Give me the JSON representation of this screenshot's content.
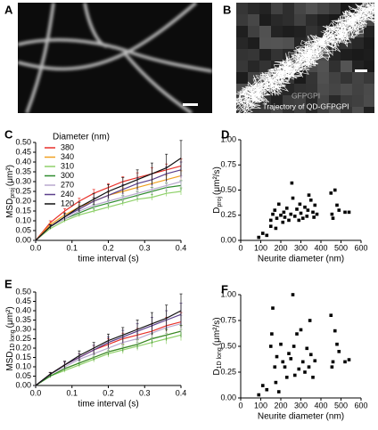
{
  "images": [
    {
      "label": "A"
    },
    {
      "label": "B",
      "caption": [
        "GFPGPI",
        "Trajectory of QD-GFPGPI"
      ]
    }
  ],
  "chart_data": [
    {
      "type": "line",
      "label": "C",
      "legend": true,
      "legend_title": "Diameter (nm)",
      "x_label": "time interval (s)",
      "y_label": {
        "main": "MSD",
        "sub": "proj",
        "unit": "(μm²)"
      },
      "xlim": [
        0,
        0.4
      ],
      "xticks": [
        {
          "value": 0,
          "label": "0.0"
        },
        0.1,
        0.2,
        0.3,
        0.4
      ],
      "ylim": [
        0,
        0.5
      ],
      "yticks": [
        {
          "value": 0,
          "label": "0.00"
        },
        0.05,
        {
          "value": 0.1,
          "label": "0.10"
        },
        0.15,
        {
          "value": 0.2,
          "label": "0.20"
        },
        0.25,
        {
          "value": 0.3,
          "label": "0.30"
        },
        0.35,
        {
          "value": 0.4,
          "label": "0.40"
        },
        0.45,
        {
          "value": 0.5,
          "label": "0.50"
        }
      ],
      "x": [
        0,
        0.04,
        0.08,
        0.12,
        0.16,
        0.2,
        0.24,
        0.28,
        0.32,
        0.36,
        0.4
      ],
      "series": [
        {
          "name": "380",
          "color": "#e8312a",
          "values": [
            0,
            0.09,
            0.15,
            0.2,
            0.24,
            0.27,
            0.3,
            0.32,
            0.34,
            0.36,
            0.38
          ],
          "errors": [
            0,
            0.01,
            0.012,
            0.015,
            0.02,
            0.02,
            0.025,
            0.025,
            0.03,
            0.03,
            0.035
          ]
        },
        {
          "name": "340",
          "color": "#f0a020",
          "values": [
            0,
            0.08,
            0.13,
            0.17,
            0.2,
            0.23,
            0.25,
            0.27,
            0.29,
            0.31,
            0.33
          ],
          "errors": [
            0,
            0.008,
            0.01,
            0.012,
            0.015,
            0.015,
            0.018,
            0.02,
            0.02,
            0.022,
            0.025
          ]
        },
        {
          "name": "310",
          "color": "#8fd16a",
          "values": [
            0,
            0.06,
            0.1,
            0.13,
            0.15,
            0.17,
            0.19,
            0.21,
            0.22,
            0.24,
            0.25
          ],
          "errors": [
            0,
            0.006,
            0.008,
            0.01,
            0.01,
            0.012,
            0.012,
            0.014,
            0.015,
            0.015,
            0.018
          ]
        },
        {
          "name": "300",
          "color": "#2e8b2e",
          "values": [
            0,
            0.07,
            0.11,
            0.14,
            0.17,
            0.19,
            0.21,
            0.23,
            0.25,
            0.27,
            0.28
          ],
          "errors": [
            0,
            0.008,
            0.01,
            0.012,
            0.014,
            0.015,
            0.018,
            0.02,
            0.02,
            0.022,
            0.025
          ]
        },
        {
          "name": "270",
          "color": "#b9a9cf",
          "values": [
            0,
            0.07,
            0.11,
            0.15,
            0.18,
            0.2,
            0.22,
            0.24,
            0.26,
            0.28,
            0.3
          ],
          "errors": [
            0,
            0.008,
            0.01,
            0.012,
            0.015,
            0.018,
            0.02,
            0.022,
            0.025,
            0.028,
            0.03
          ]
        },
        {
          "name": "240",
          "color": "#5b3f8c",
          "values": [
            0,
            0.07,
            0.12,
            0.16,
            0.2,
            0.23,
            0.26,
            0.29,
            0.31,
            0.34,
            0.36
          ],
          "errors": [
            0,
            0.01,
            0.012,
            0.015,
            0.018,
            0.02,
            0.025,
            0.028,
            0.03,
            0.035,
            0.04
          ]
        },
        {
          "name": "120",
          "color": "#111111",
          "values": [
            0,
            0.07,
            0.12,
            0.17,
            0.21,
            0.25,
            0.28,
            0.31,
            0.34,
            0.37,
            0.42
          ],
          "errors": [
            0,
            0.01,
            0.02,
            0.025,
            0.03,
            0.035,
            0.04,
            0.05,
            0.055,
            0.07,
            0.09
          ]
        }
      ]
    },
    {
      "type": "scatter",
      "label": "D",
      "color": "#000000",
      "x_label": "Neurite diameter (nm)",
      "y_label": {
        "main": "D",
        "sub": "proj",
        "unit": "(μm²/s)"
      },
      "xlim": [
        0,
        600
      ],
      "xticks": [
        0,
        100,
        200,
        300,
        400,
        500,
        600
      ],
      "ylim": [
        0,
        1
      ],
      "yticks": [
        {
          "value": 0,
          "label": "0.00"
        },
        0.25,
        {
          "value": 0.5,
          "label": "0.50"
        },
        0.75,
        {
          "value": 1,
          "label": "1.00"
        }
      ],
      "x": [
        90,
        110,
        130,
        150,
        150,
        160,
        170,
        175,
        180,
        190,
        200,
        210,
        215,
        220,
        230,
        240,
        250,
        255,
        260,
        270,
        280,
        290,
        295,
        300,
        310,
        320,
        330,
        335,
        340,
        350,
        360,
        365,
        370,
        380,
        450,
        455,
        460,
        470,
        480,
        490,
        520,
        540
      ],
      "values": [
        0.03,
        0.07,
        0.05,
        0.14,
        0.2,
        0.26,
        0.3,
        0.12,
        0.22,
        0.36,
        0.25,
        0.18,
        0.28,
        0.23,
        0.32,
        0.2,
        0.26,
        0.57,
        0.42,
        0.24,
        0.31,
        0.2,
        0.36,
        0.27,
        0.22,
        0.33,
        0.24,
        0.3,
        0.45,
        0.4,
        0.28,
        0.23,
        0.35,
        0.26,
        0.47,
        0.26,
        0.22,
        0.5,
        0.35,
        0.3,
        0.28,
        0.28
      ]
    },
    {
      "type": "line",
      "label": "E",
      "legend": false,
      "x_label": "time interval (s)",
      "y_label": {
        "main": "MSD",
        "sub": "1D long",
        "unit": "(μm²)"
      },
      "xlim": [
        0,
        0.4
      ],
      "xticks": [
        {
          "value": 0,
          "label": "0.0"
        },
        0.1,
        0.2,
        0.3,
        0.4
      ],
      "ylim": [
        0,
        0.5
      ],
      "yticks": [
        {
          "value": 0,
          "label": "0.00"
        },
        0.05,
        {
          "value": 0.1,
          "label": "0.10"
        },
        0.15,
        {
          "value": 0.2,
          "label": "0.20"
        },
        0.25,
        {
          "value": 0.3,
          "label": "0.30"
        },
        0.35,
        {
          "value": 0.4,
          "label": "0.40"
        },
        0.45,
        {
          "value": 0.5,
          "label": "0.50"
        }
      ],
      "x": [
        0,
        0.04,
        0.08,
        0.12,
        0.16,
        0.2,
        0.24,
        0.28,
        0.32,
        0.36,
        0.4
      ],
      "series": [
        {
          "color": "#e8312a",
          "values": [
            0,
            0.06,
            0.11,
            0.15,
            0.19,
            0.22,
            0.25,
            0.27,
            0.29,
            0.32,
            0.34
          ],
          "errors": [
            0,
            0.01,
            0.015,
            0.02,
            0.025,
            0.03,
            0.03,
            0.035,
            0.04,
            0.045,
            0.05
          ]
        },
        {
          "color": "#f0a020",
          "values": [
            0,
            0.05,
            0.09,
            0.12,
            0.15,
            0.18,
            0.2,
            0.22,
            0.25,
            0.27,
            0.29
          ],
          "errors": [
            0,
            0.008,
            0.012,
            0.015,
            0.018,
            0.02,
            0.022,
            0.025,
            0.028,
            0.03,
            0.032
          ]
        },
        {
          "color": "#8fd16a",
          "values": [
            0,
            0.05,
            0.08,
            0.11,
            0.14,
            0.17,
            0.19,
            0.21,
            0.23,
            0.25,
            0.27
          ],
          "errors": [
            0,
            0.006,
            0.01,
            0.012,
            0.015,
            0.018,
            0.02,
            0.022,
            0.025,
            0.028,
            0.03
          ]
        },
        {
          "color": "#2e8b2e",
          "values": [
            0,
            0.05,
            0.09,
            0.12,
            0.15,
            0.18,
            0.2,
            0.22,
            0.25,
            0.27,
            0.29
          ],
          "errors": [
            0,
            0.008,
            0.01,
            0.014,
            0.016,
            0.018,
            0.02,
            0.024,
            0.026,
            0.03,
            0.032
          ]
        },
        {
          "color": "#b9a9cf",
          "values": [
            0,
            0.06,
            0.1,
            0.14,
            0.17,
            0.2,
            0.23,
            0.25,
            0.28,
            0.31,
            0.33
          ],
          "errors": [
            0,
            0.01,
            0.012,
            0.016,
            0.02,
            0.024,
            0.028,
            0.03,
            0.035,
            0.04,
            0.045
          ]
        },
        {
          "color": "#5b3f8c",
          "values": [
            0,
            0.06,
            0.11,
            0.15,
            0.19,
            0.23,
            0.26,
            0.29,
            0.32,
            0.35,
            0.38
          ],
          "errors": [
            0,
            0.01,
            0.015,
            0.02,
            0.025,
            0.03,
            0.035,
            0.04,
            0.045,
            0.05,
            0.06
          ]
        },
        {
          "color": "#111111",
          "values": [
            0,
            0.06,
            0.11,
            0.16,
            0.2,
            0.24,
            0.27,
            0.3,
            0.33,
            0.36,
            0.4
          ],
          "errors": [
            0,
            0.01,
            0.02,
            0.025,
            0.03,
            0.035,
            0.04,
            0.05,
            0.06,
            0.07,
            0.09
          ]
        }
      ]
    },
    {
      "type": "scatter",
      "label": "F",
      "color": "#000000",
      "x_label": "Neurite diameter (nm)",
      "y_label": {
        "main": "D",
        "sub": "1D long",
        "unit": "(μm²/s)"
      },
      "xlim": [
        0,
        600
      ],
      "xticks": [
        0,
        100,
        200,
        300,
        400,
        500,
        600
      ],
      "ylim": [
        0,
        1
      ],
      "yticks": [
        {
          "value": 0,
          "label": "0.00"
        },
        0.25,
        {
          "value": 0.5,
          "label": "0.50"
        },
        0.75,
        {
          "value": 1,
          "label": "1.00"
        }
      ],
      "x": [
        90,
        110,
        130,
        150,
        155,
        160,
        170,
        175,
        180,
        190,
        200,
        210,
        220,
        230,
        240,
        250,
        260,
        265,
        270,
        280,
        290,
        300,
        310,
        320,
        330,
        340,
        345,
        350,
        360,
        370,
        450,
        455,
        460,
        470,
        480,
        490,
        520,
        540
      ],
      "values": [
        0.03,
        0.12,
        0.08,
        0.5,
        0.62,
        0.87,
        0.3,
        0.15,
        0.4,
        0.06,
        0.52,
        0.35,
        0.3,
        0.2,
        0.43,
        0.38,
        1.0,
        0.5,
        0.22,
        0.62,
        0.28,
        0.66,
        0.35,
        0.25,
        0.48,
        0.3,
        0.75,
        0.42,
        0.2,
        0.36,
        0.8,
        0.3,
        0.35,
        0.65,
        0.52,
        0.45,
        0.35,
        0.37
      ]
    }
  ]
}
